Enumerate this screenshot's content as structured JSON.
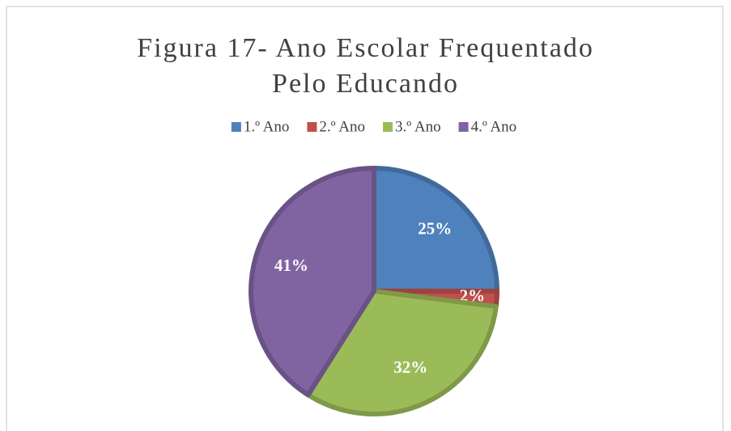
{
  "chart_data": {
    "type": "pie",
    "title": "Figura 17- Ano Escolar Frequentado Pelo Educando",
    "categories": [
      "1.º Ano",
      "2.º Ano",
      "3.º Ano",
      "4.º Ano"
    ],
    "values": [
      25,
      2,
      32,
      41
    ],
    "value_labels": [
      "25%",
      "2%",
      "32%",
      "41%"
    ],
    "colors": [
      "#4f81bd",
      "#c0504d",
      "#9bbb59",
      "#8064a2"
    ],
    "legend": "top"
  }
}
